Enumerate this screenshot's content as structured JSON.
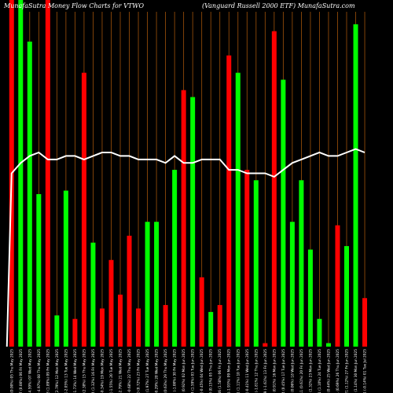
{
  "header": {
    "title_left": "MunafaSutra  Money Flow  Charts for VTWO",
    "title_right": "(Vanguard Russell 2000   ETF) MunafaSutra.com"
  },
  "colors": {
    "background": "#000000",
    "up": "#00ff00",
    "down": "#ff0000",
    "grid": "#a0520a",
    "line": "#ffffff",
    "text": "#ffffff"
  },
  "chart_data": {
    "type": "bar",
    "series": [
      {
        "values": [
          100,
          100,
          88,
          44,
          100,
          9,
          45,
          8,
          79,
          30,
          11,
          25,
          15,
          32,
          11,
          36,
          36,
          12,
          51,
          74,
          72,
          20,
          10,
          12,
          84,
          79,
          51,
          48,
          1,
          91,
          77,
          36,
          48,
          28,
          8,
          1,
          35,
          29,
          93,
          14
        ],
        "colors": [
          "down",
          "up",
          "up",
          "up",
          "down",
          "up",
          "up",
          "down",
          "down",
          "up",
          "down",
          "down",
          "down",
          "down",
          "down",
          "up",
          "up",
          "down",
          "up",
          "down",
          "up",
          "down",
          "up",
          "down",
          "down",
          "up",
          "down",
          "up",
          "down",
          "down",
          "up",
          "up",
          "up",
          "up",
          "up",
          "up",
          "down",
          "up",
          "up",
          "down"
        ]
      },
      {
        "type": "line",
        "values": [
          50,
          53,
          55,
          56,
          54,
          54,
          55,
          55,
          54,
          55,
          56,
          56,
          55,
          55,
          54,
          54,
          54,
          53,
          55,
          53,
          53,
          54,
          54,
          54,
          51,
          51,
          50,
          50,
          50,
          49,
          51,
          53,
          54,
          55,
          56,
          55,
          55,
          56,
          57,
          56
        ]
      }
    ],
    "categories": [
      "60.23 (0.00%) 05 Thu May 2025",
      "92.97 (0.00%) 06 Fri May 2025",
      "88.70 (-4.59%) 07 Wed May 2025",
      "84.29 (-4.97%) 08 Thu May 2025",
      "85.88 (1.89%) 09 Fri May 2025",
      "88.28 (2.79%) 12 Mon May 2025",
      "86.47 (-2.05%) 13 Tue May 2025",
      "84.97 (-1.73%) 14 Wed May 2025",
      "86.99 (2.38%) 15 Thu May 2025",
      "88.14 (1.32%) 16 Fri May 2025",
      "87.84 (-0.34%) 19 Mon May 2025",
      "86.48 (-1.55%) 20 Tue May 2025",
      "84.07 (-2.79%) 21 Wed May 2025",
      "83.50 (-0.68%) 22 Thu May 2025",
      "84.10 (0.72%) 23 Fri May 2025",
      "85.76 (1.97%) 27 Tue May 2025",
      "85.51 (-0.29%) 28 Wed May 2025",
      "86.05 (0.63%) 29 Thu May 2025",
      "85.19 (-1.00%) 30 Fri May 2025",
      "85.97 (0.92%) 02 Mon Jun 2025",
      "87.34 (1.59%) 03 Tue Jun 2025",
      "86.95 (-0.45%) 04 Wed Jun 2025",
      "87.08 (0.15%) 05 Thu Jun 2025",
      "88.46 (1.58%) 06 Fri Jun 2025",
      "86.75 (-1.93%) 09 Mon Jun 2025",
      "87.71 (1.11%) 10 Tue Jun 2025",
      "87.35 (-0.41%) 11 Wed Jun 2025",
      "85.77 (-1.81%) 12 Thu Jun 2025",
      "84.39 (-1.61%) 13 Fri Jun 2025",
      "85.16 (0.91%) 16 Mon Jun 2025",
      "85.54 (0.45%) 17 Tue Jun 2025",
      "85.59 (0.06%) 18 Wed Jun 2025",
      "86.11 (0.61%) 20 Fri Jun 2025",
      "87.25 (1.32%) 23 Mon Jun 2025",
      "88.21 (1.10%) 24 Tue Jun 2025",
      "88.60 (0.44%) 25 Wed Jun 2025",
      "89.21 (0.69%) 26 Thu Jun 2025",
      "90.21 (1.12%) 27 Fri Jun 2025",
      "91.24 (1.14%) 30 Mon Jun 2025",
      "91.11 (-0.14%) 01 Tue Jul 2025"
    ],
    "ylim": [
      0,
      100
    ],
    "grid": true
  }
}
